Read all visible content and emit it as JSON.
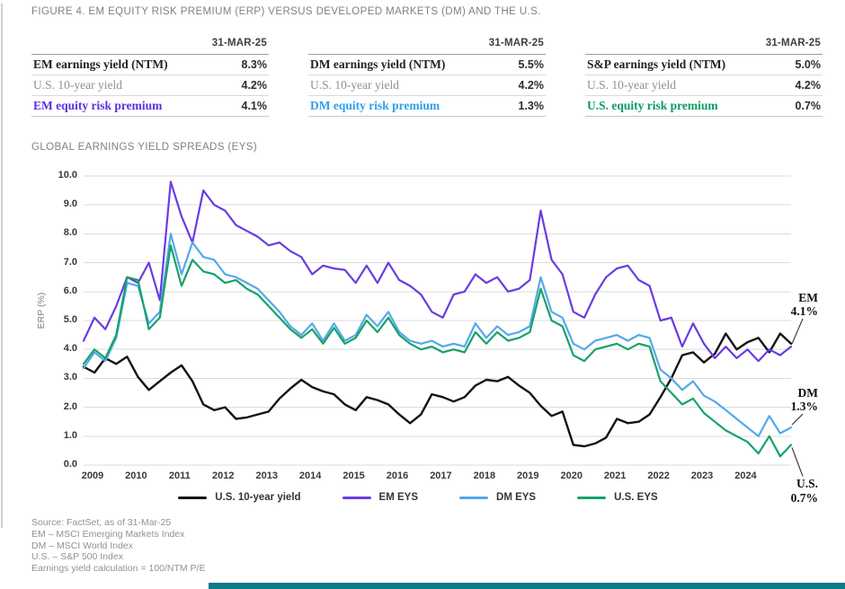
{
  "figure_title": "FIGURE 4. EM EQUITY RISK PREMIUM (ERP) VERSUS DEVELOPED MARKETS (DM) AND THE U.S.",
  "tables": [
    {
      "date_header": "31-MAR-25",
      "rows": [
        {
          "label": "EM earnings yield (NTM)",
          "value": "8.3%",
          "style": "bold"
        },
        {
          "label": "U.S. 10-year yield",
          "value": "4.2%",
          "style": "muted"
        },
        {
          "label": "EM equity risk premium",
          "value": "4.1%",
          "style": "accent",
          "accent_color": "#5a30dc"
        }
      ]
    },
    {
      "date_header": "31-MAR-25",
      "rows": [
        {
          "label": "DM earnings yield (NTM)",
          "value": "5.5%",
          "style": "bold"
        },
        {
          "label": "U.S. 10-year yield",
          "value": "4.2%",
          "style": "muted"
        },
        {
          "label": "DM equity risk premium",
          "value": "1.3%",
          "style": "accent",
          "accent_color": "#2d9fe8"
        }
      ]
    },
    {
      "date_header": "31-MAR-25",
      "rows": [
        {
          "label": "S&P earnings yield (NTM)",
          "value": "5.0%",
          "style": "bold"
        },
        {
          "label": "U.S. 10-year yield",
          "value": "4.2%",
          "style": "muted"
        },
        {
          "label": "U.S. equity risk premium",
          "value": "0.7%",
          "style": "accent",
          "accent_color": "#0d9a62"
        }
      ]
    }
  ],
  "chart_section_title": "GLOBAL EARNINGS YIELD SPREADS (EYS)",
  "chart_data": {
    "type": "line",
    "title": "GLOBAL EARNINGS YIELD SPREADS (EYS)",
    "ylabel": "ERP (%)",
    "ylim": [
      0,
      10
    ],
    "ytick_step": 1,
    "ytick_format_decimals": 1,
    "grid": true,
    "legend_position": "bottom",
    "x_start": 2009.0,
    "x_step": 0.25,
    "x_end": 2025.25,
    "xticks": [
      2009,
      2010,
      2011,
      2012,
      2013,
      2014,
      2015,
      2016,
      2017,
      2018,
      2019,
      2020,
      2021,
      2022,
      2023,
      2024
    ],
    "series": [
      {
        "name": "U.S. 10-year yield",
        "color": "#141414",
        "values": [
          3.4,
          3.2,
          3.7,
          3.5,
          3.75,
          3.05,
          2.6,
          2.9,
          3.2,
          3.45,
          2.9,
          2.1,
          1.9,
          2.0,
          1.6,
          1.65,
          1.75,
          1.85,
          2.3,
          2.65,
          2.95,
          2.7,
          2.55,
          2.45,
          2.1,
          1.9,
          2.35,
          2.25,
          2.1,
          1.75,
          1.45,
          1.75,
          2.45,
          2.35,
          2.2,
          2.35,
          2.75,
          2.95,
          2.9,
          3.05,
          2.75,
          2.5,
          2.05,
          1.7,
          1.85,
          0.7,
          0.65,
          0.75,
          0.95,
          1.6,
          1.45,
          1.5,
          1.75,
          2.35,
          3.0,
          3.8,
          3.9,
          3.55,
          3.85,
          4.55,
          4.0,
          4.25,
          4.4,
          3.9,
          4.55,
          4.2
        ]
      },
      {
        "name": "EM EYS",
        "color": "#6a3be4",
        "values": [
          4.3,
          5.1,
          4.7,
          5.5,
          6.5,
          6.3,
          7.0,
          5.7,
          9.8,
          8.6,
          7.7,
          9.5,
          9.0,
          8.8,
          8.3,
          8.1,
          7.9,
          7.6,
          7.7,
          7.4,
          7.2,
          6.6,
          6.9,
          6.8,
          6.75,
          6.3,
          6.9,
          6.3,
          7.0,
          6.4,
          6.2,
          5.9,
          5.3,
          5.1,
          5.9,
          6.0,
          6.6,
          6.3,
          6.5,
          6.0,
          6.1,
          6.4,
          8.8,
          7.1,
          6.6,
          5.3,
          5.1,
          5.9,
          6.5,
          6.8,
          6.9,
          6.4,
          6.2,
          5.0,
          5.1,
          4.1,
          4.9,
          4.2,
          3.7,
          4.1,
          3.7,
          4.0,
          3.6,
          4.0,
          3.8,
          4.1
        ]
      },
      {
        "name": "DM EYS",
        "color": "#54a9ea",
        "values": [
          3.35,
          3.9,
          3.6,
          4.4,
          6.3,
          6.2,
          4.9,
          5.3,
          8.0,
          6.6,
          7.7,
          7.2,
          7.1,
          6.6,
          6.5,
          6.3,
          6.1,
          5.7,
          5.3,
          4.8,
          4.5,
          4.9,
          4.3,
          4.9,
          4.3,
          4.5,
          5.2,
          4.8,
          5.3,
          4.6,
          4.3,
          4.2,
          4.3,
          4.1,
          4.2,
          4.1,
          4.9,
          4.4,
          4.8,
          4.5,
          4.6,
          4.8,
          6.5,
          5.3,
          5.1,
          4.2,
          4.0,
          4.3,
          4.4,
          4.5,
          4.3,
          4.5,
          4.4,
          3.3,
          3.0,
          2.6,
          2.9,
          2.4,
          2.2,
          1.9,
          1.6,
          1.3,
          1.0,
          1.7,
          1.1,
          1.3
        ]
      },
      {
        "name": "U.S. EYS",
        "color": "#17a268",
        "values": [
          3.5,
          4.0,
          3.7,
          4.5,
          6.5,
          6.4,
          4.7,
          5.1,
          7.6,
          6.2,
          7.1,
          6.7,
          6.6,
          6.3,
          6.4,
          6.1,
          5.9,
          5.5,
          5.1,
          4.7,
          4.4,
          4.7,
          4.2,
          4.75,
          4.2,
          4.4,
          5.0,
          4.6,
          5.1,
          4.5,
          4.2,
          4.0,
          4.1,
          3.9,
          4.0,
          3.9,
          4.6,
          4.2,
          4.6,
          4.3,
          4.4,
          4.6,
          6.1,
          5.0,
          4.8,
          3.8,
          3.6,
          4.0,
          4.1,
          4.2,
          4.0,
          4.2,
          4.1,
          2.9,
          2.5,
          2.1,
          2.3,
          1.8,
          1.5,
          1.2,
          1.0,
          0.8,
          0.4,
          1.0,
          0.3,
          0.7
        ]
      }
    ],
    "annotations": [
      {
        "label": "EM",
        "value": "4.1%",
        "series": "EM EYS"
      },
      {
        "label": "DM",
        "value": "1.3%",
        "series": "DM EYS"
      },
      {
        "label": "U.S.",
        "value": "0.7%",
        "series": "U.S. EYS"
      }
    ]
  },
  "footnotes": [
    "Source: FactSet, as of 31-Mar-25",
    "EM – MSCI Emerging Markets Index",
    "DM – MSCI World Index",
    "U.S. – S&P 500 Index",
    "Earnings yield calculation = 100/NTM P/E"
  ]
}
